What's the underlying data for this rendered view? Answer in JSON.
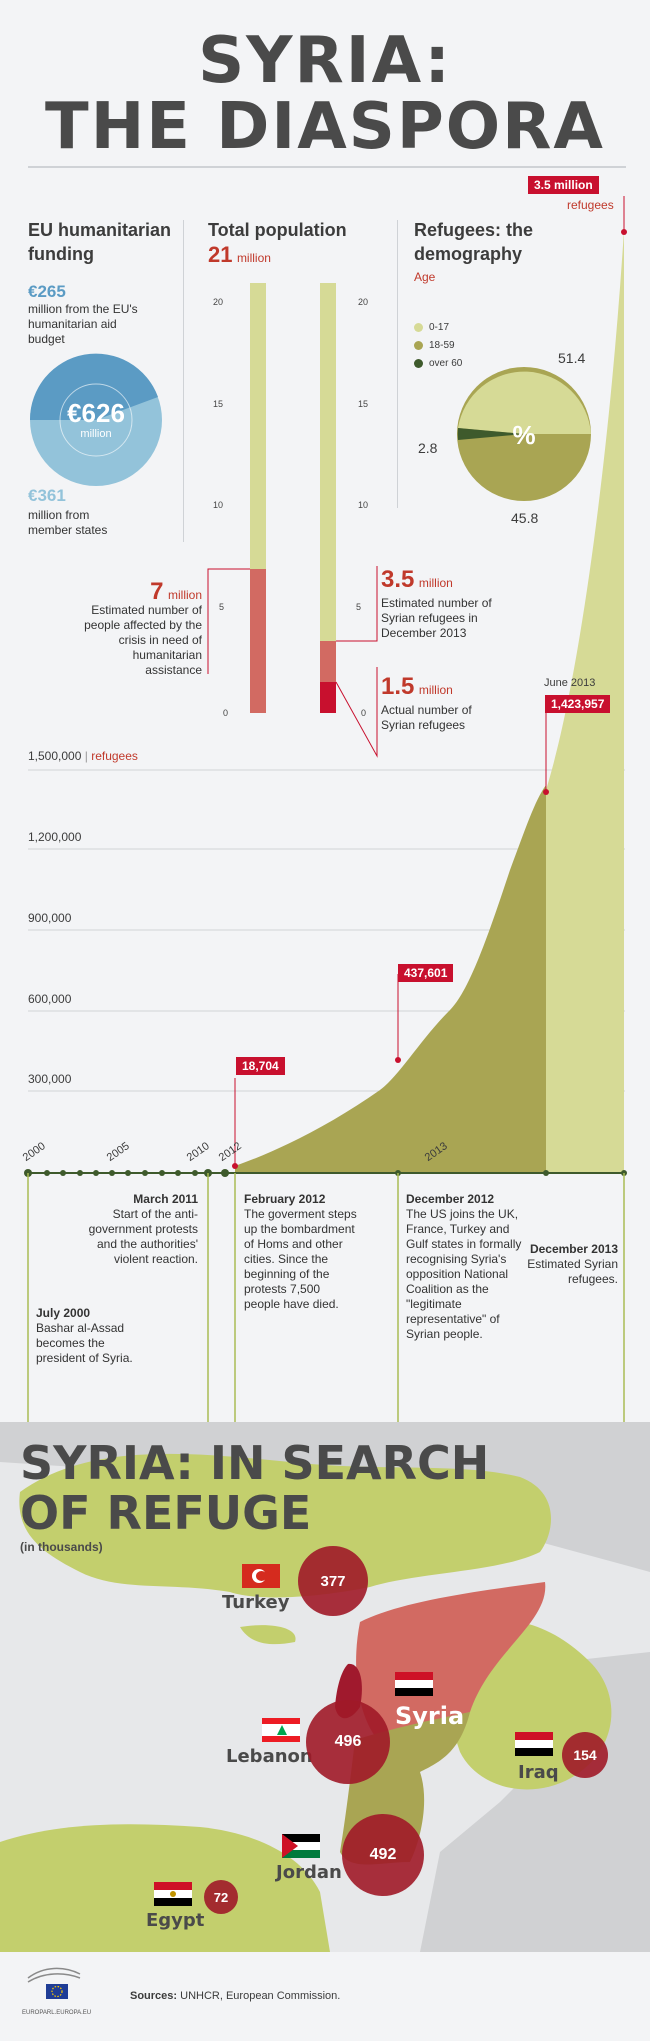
{
  "title": {
    "line1": "SYRIA:",
    "line2": "THE DIASPORA"
  },
  "funding": {
    "heading": "EU humanitarian funding",
    "eu_amount": "€265",
    "eu_desc": "million from the EU's humanitarian aid budget",
    "total": "€626",
    "total_unit": "million",
    "member_amount": "€361",
    "member_desc": "million from member states",
    "colors": {
      "eu": "#5b9bc4",
      "member": "#93c3da"
    }
  },
  "population": {
    "heading": "Total population",
    "total_num": "21",
    "total_unit": "million",
    "ticks": [
      "20",
      "15",
      "10",
      "5",
      "0"
    ],
    "affected_num": "7",
    "affected_unit": "million",
    "affected_desc": "Estimated number of people affected by the crisis in need of humanitarian assistance",
    "est_num": "3.5",
    "est_unit": "million",
    "est_desc": "Estimated number of Syrian refugees in December 2013",
    "actual_num": "1.5",
    "actual_unit": "million",
    "actual_desc": "Actual number of Syrian refugees"
  },
  "demography": {
    "heading": "Refugees: the demography",
    "sub": "Age",
    "legend": [
      {
        "label": "0-17",
        "color": "#d6da96"
      },
      {
        "label": "18-59",
        "color": "#a9a553"
      },
      {
        "label": "over 60",
        "color": "#3e5a2c"
      }
    ],
    "values": [
      "51.4",
      "45.8",
      "2.8"
    ],
    "symbol": "%"
  },
  "timeline_chart": {
    "y_axis_label_main": "1,500,000",
    "y_axis_label_unit": "refugees",
    "y_ticks": [
      "1,200,000",
      "900,000",
      "600,000",
      "300,000"
    ],
    "x_ticks": [
      "2000",
      "2005",
      "2010",
      "2012",
      "2013"
    ],
    "top_label_num": "3.5 million",
    "top_label_unit": "refugees",
    "june_label": "June 2013",
    "callouts": [
      "18,704",
      "437,601",
      "1,423,957"
    ]
  },
  "chart_data": {
    "type": "area",
    "x": [
      "Feb 2012",
      "Dec 2012",
      "Jun 2013",
      "Dec 2013"
    ],
    "values": [
      18704,
      437601,
      1423957,
      3500000
    ]
  },
  "events": [
    {
      "date": "March 2011",
      "text": "Start of the anti-government protests and the authorities' violent reaction."
    },
    {
      "date": "July 2000",
      "text": "Bashar al-Assad becomes the president of Syria."
    },
    {
      "date": "February 2012",
      "text": "The goverment steps up the bombardment of Homs and other cities. Since the beginning of the protests 7,500 people have died."
    },
    {
      "date": "December 2012",
      "text": "The US joins the UK, France, Turkey and Gulf states in formally recognising Syria's opposition National Coalition as the \"legitimate representative\" of Syrian people."
    },
    {
      "date": "December 2013",
      "text": "Estimated Syrian refugees."
    }
  ],
  "map": {
    "title_line1": "SYRIA: IN SEARCH",
    "title_line2": "OF REFUGE",
    "subtitle": "(in thousands)",
    "countries": [
      {
        "name": "Turkey",
        "value": "377"
      },
      {
        "name": "Syria",
        "value": ""
      },
      {
        "name": "Lebanon",
        "value": "496"
      },
      {
        "name": "Iraq",
        "value": "154"
      },
      {
        "name": "Jordan",
        "value": "492"
      },
      {
        "name": "Egypt",
        "value": "72"
      }
    ]
  },
  "footer": {
    "logo_text": "EUROPARL.EUROPA.EU",
    "sources_label": "Sources:",
    "sources_text": "UNHCR, European Commission."
  }
}
